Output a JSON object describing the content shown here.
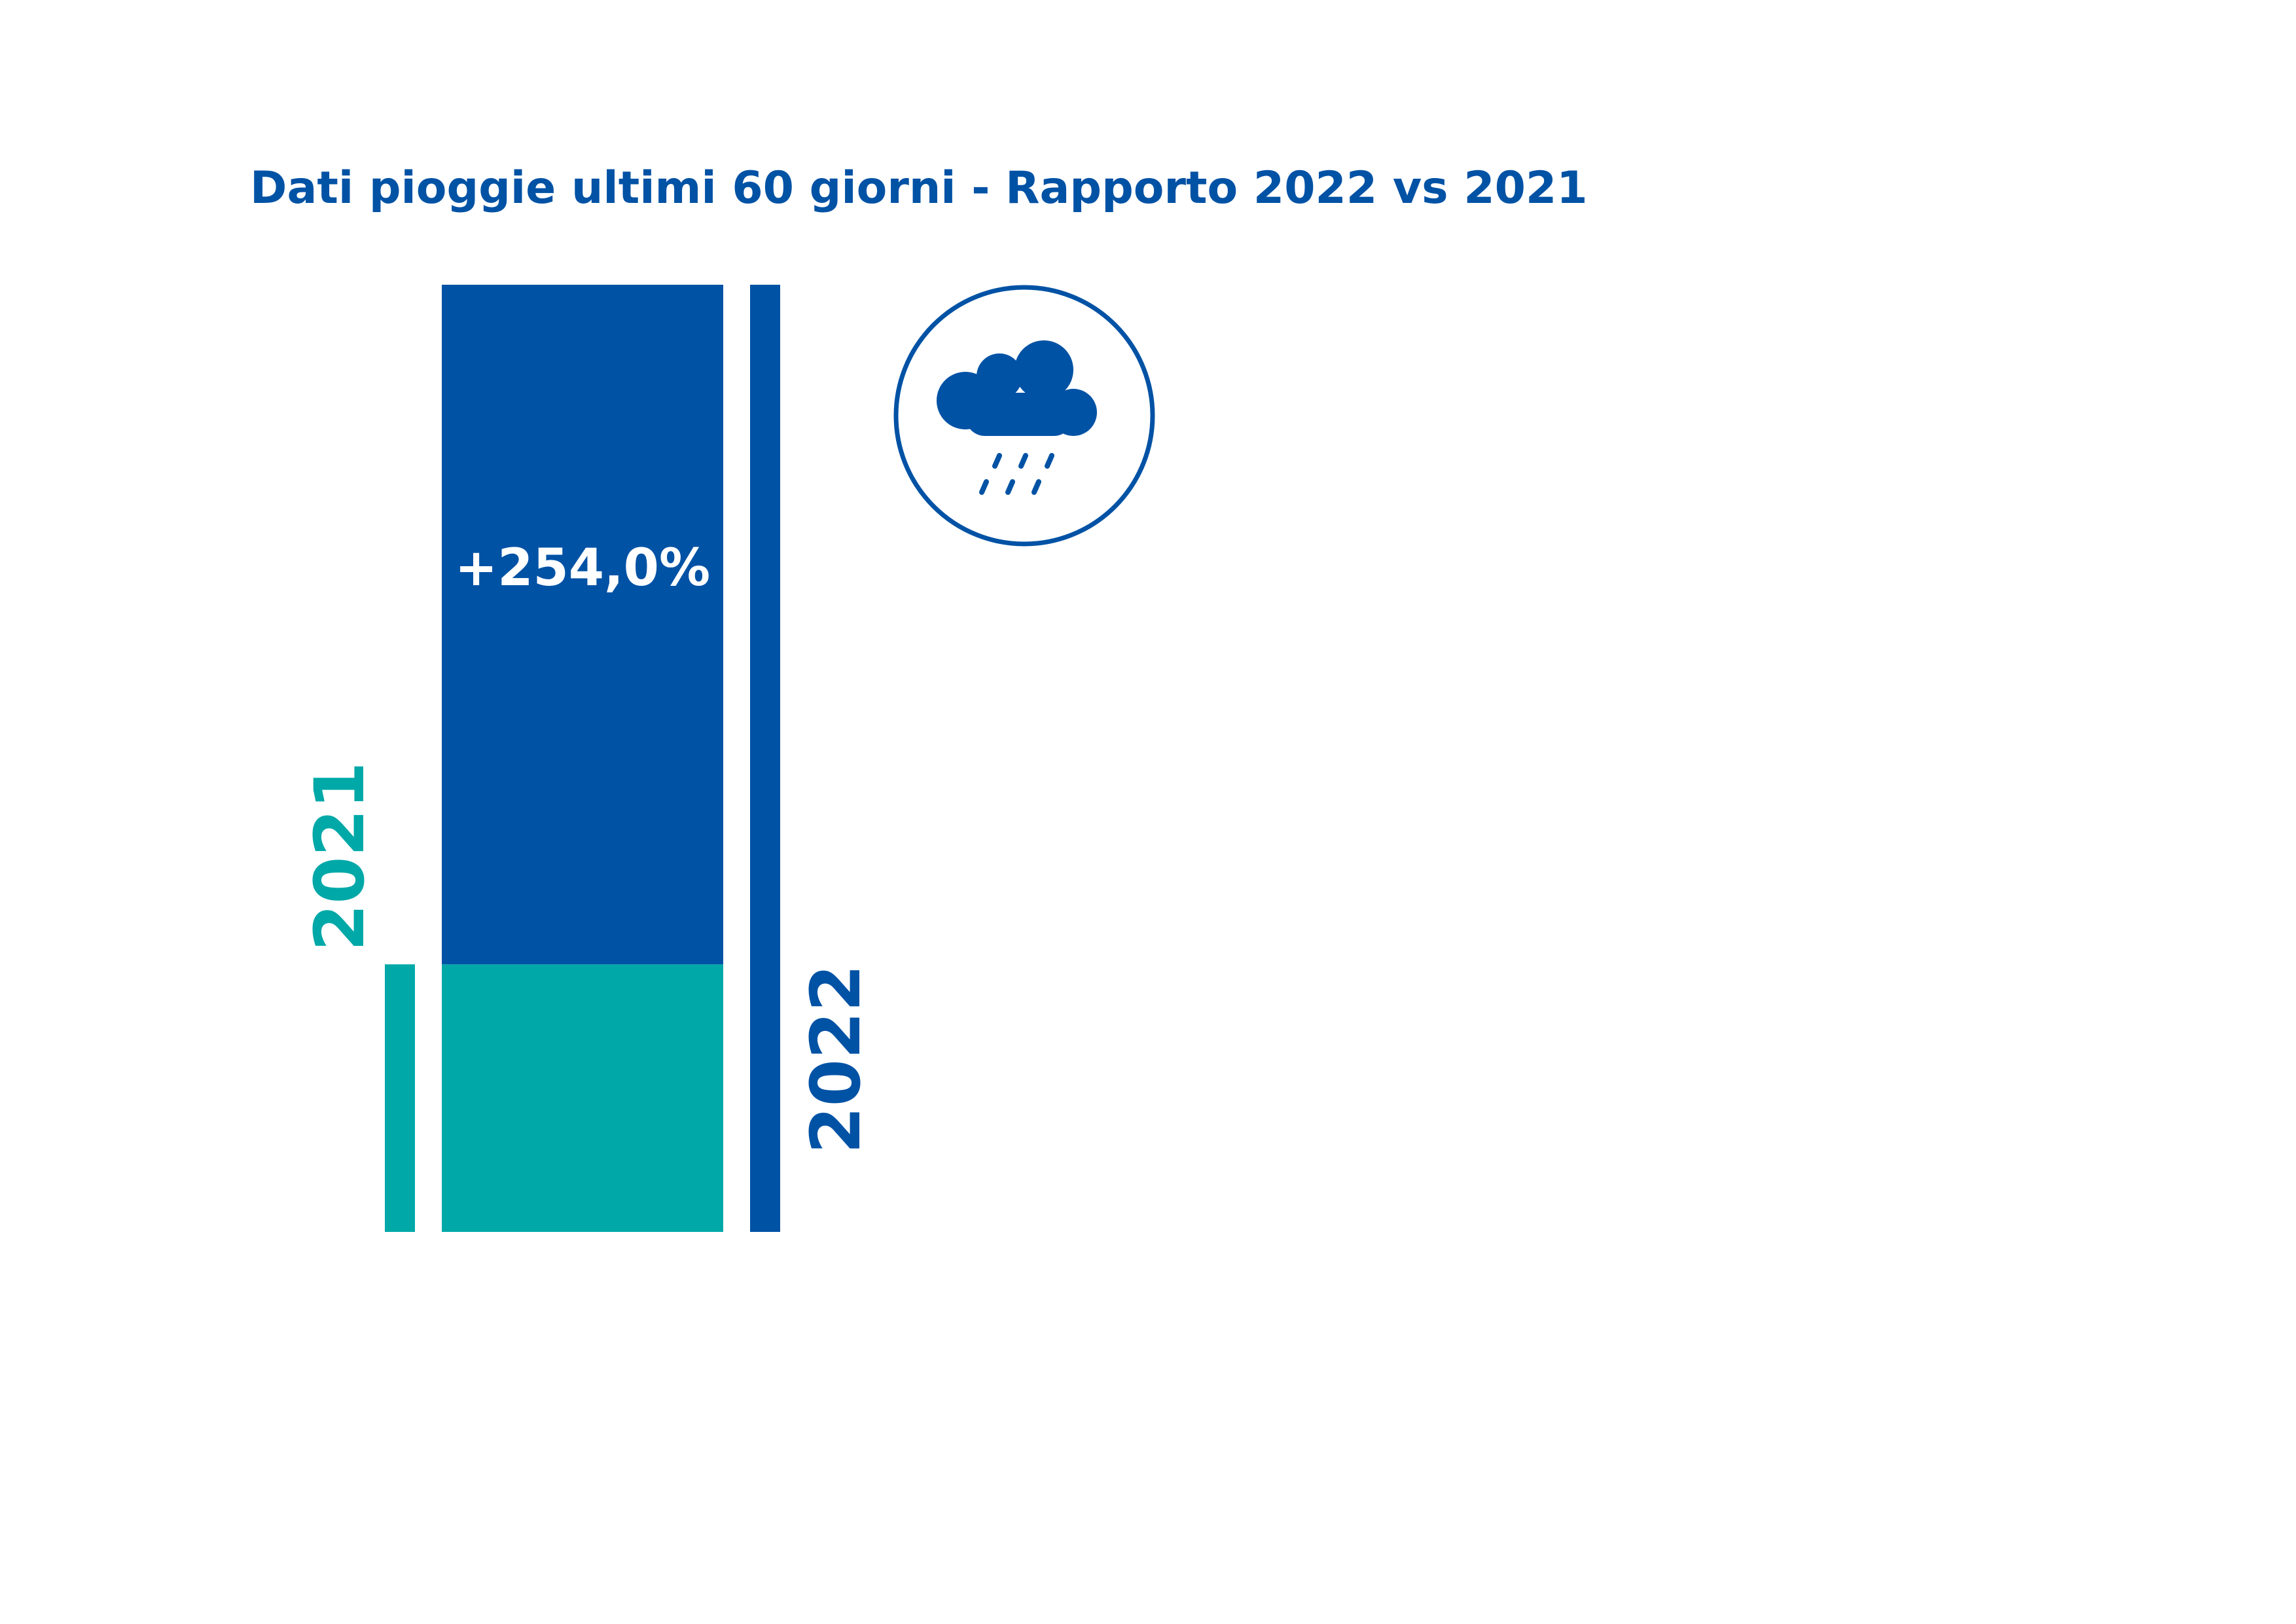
{
  "chart_data": {
    "type": "bar",
    "title": "Dati pioggie ultimi 60 giorni - Rapporto 2022 vs 2021",
    "categories": [
      "2021",
      "2022"
    ],
    "values": [
      1,
      3.54
    ],
    "change_label": "+254,0%",
    "change_percent": 254.0,
    "icon": "rain-cloud-icon",
    "colors": {
      "2021": "#00a8a8",
      "2022": "#0052a5",
      "title": "#0052a5"
    }
  }
}
